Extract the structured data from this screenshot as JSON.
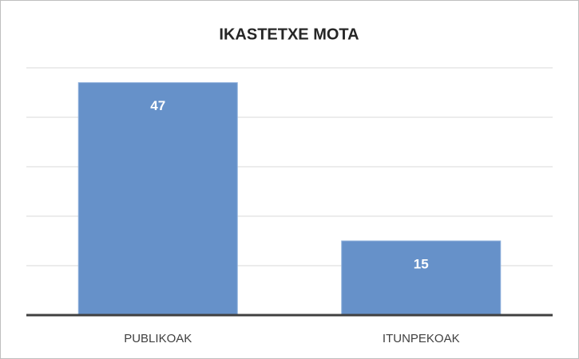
{
  "chart_data": {
    "type": "bar",
    "title": "IKASTETXE MOTA",
    "categories": [
      "PUBLIKOAK",
      "ITUNPEKOAK"
    ],
    "values": [
      47,
      15
    ],
    "color": "#6691c9",
    "ylim": [
      0,
      50
    ],
    "yticks": [
      0,
      10,
      20,
      30,
      40,
      50
    ],
    "grid": true,
    "tick_labels": false,
    "data_labels": true
  }
}
